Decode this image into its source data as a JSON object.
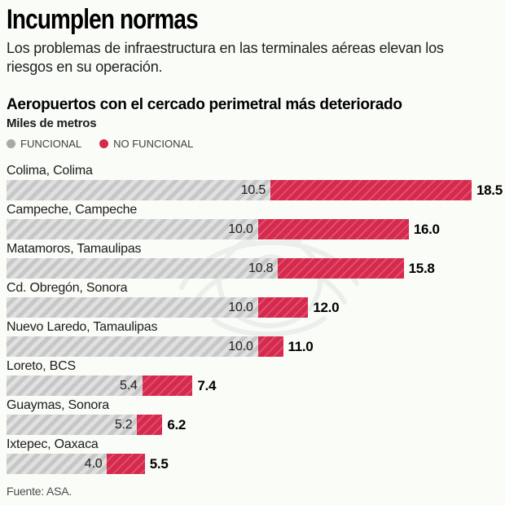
{
  "header": {
    "title": "Incumplen normas",
    "subtitle": "Los problemas de infraestructura en las terminales aéreas elevan los riesgos en su operación."
  },
  "chart_data": {
    "type": "bar",
    "orientation": "horizontal",
    "stacked": true,
    "title": "Aeropuertos con el cercado perimetral más deteriorado",
    "units_label": "Miles de metros",
    "xmax": 18.5,
    "grid": false,
    "legend_position": "top-left",
    "legend": [
      {
        "name": "FUNCIONAL",
        "color": "#a9a9a9"
      },
      {
        "name": "NO FUNCIONAL",
        "color": "#d5294d"
      }
    ],
    "categories": [
      "Colima, Colima",
      "Campeche, Campeche",
      "Matamoros, Tamaulipas",
      "Cd. Obregón, Sonora",
      "Nuevo Laredo, Tamaulipas",
      "Loreto, BCS",
      "Guaymas, Sonora",
      "Ixtepec, Oaxaca"
    ],
    "series": [
      {
        "name": "FUNCIONAL",
        "values": [
          10.5,
          10.0,
          10.8,
          10.0,
          10.0,
          5.4,
          5.2,
          4.0
        ]
      },
      {
        "name": "NO FUNCIONAL",
        "values": [
          8.0,
          6.0,
          5.0,
          2.0,
          1.0,
          2.0,
          1.0,
          1.5
        ]
      }
    ],
    "totals": [
      18.5,
      16.0,
      15.8,
      12.0,
      11.0,
      7.4,
      6.2,
      5.5
    ],
    "rows": [
      {
        "label": "Colima, Colima",
        "funcional": 10.5,
        "total": 18.5,
        "funcional_label": "10.5",
        "total_label": "18.5"
      },
      {
        "label": "Campeche, Campeche",
        "funcional": 10.0,
        "total": 16.0,
        "funcional_label": "10.0",
        "total_label": "16.0"
      },
      {
        "label": "Matamoros, Tamaulipas",
        "funcional": 10.8,
        "total": 15.8,
        "funcional_label": "10.8",
        "total_label": "15.8"
      },
      {
        "label": "Cd. Obregón, Sonora",
        "funcional": 10.0,
        "total": 12.0,
        "funcional_label": "10.0",
        "total_label": "12.0"
      },
      {
        "label": "Nuevo Laredo, Tamaulipas",
        "funcional": 10.0,
        "total": 11.0,
        "funcional_label": "10.0",
        "total_label": "11.0"
      },
      {
        "label": "Loreto, BCS",
        "funcional": 5.4,
        "total": 7.4,
        "funcional_label": "5.4",
        "total_label": "7.4"
      },
      {
        "label": "Guaymas, Sonora",
        "funcional": 5.2,
        "total": 6.2,
        "funcional_label": "5.2",
        "total_label": "6.2"
      },
      {
        "label": "Ixtepec, Oaxaca",
        "funcional": 4.0,
        "total": 5.5,
        "funcional_label": "4.0",
        "total_label": "5.5"
      }
    ],
    "colors": {
      "funcional_base": "#e0e0e0",
      "funcional_stripe": "#c7c7c7",
      "no_funcional_base": "#d5294d",
      "no_funcional_stripe": "#e0506c"
    }
  },
  "footer": {
    "source": "Fuente: ASA."
  }
}
